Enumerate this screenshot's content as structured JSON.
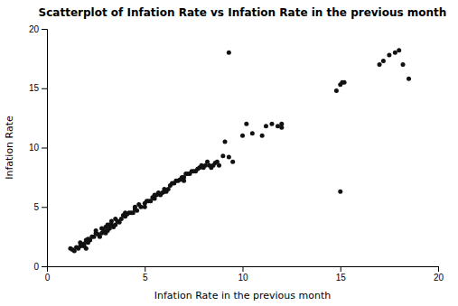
{
  "chart_data": {
    "type": "scatter",
    "title": "Scatterplot of Infation Rate vs Infation Rate in the previous month",
    "xlabel": "Infation Rate in the previous month",
    "ylabel": "Infation Rate",
    "color": "#111111",
    "grid": false,
    "xlim": [
      0,
      20
    ],
    "ylim": [
      0,
      20
    ],
    "xticks": [
      0,
      5,
      10,
      15,
      20
    ],
    "yticks": [
      0,
      5,
      10,
      15,
      20
    ],
    "x": [
      1.2,
      1.3,
      1.4,
      1.5,
      1.6,
      1.7,
      1.7,
      1.8,
      1.9,
      1.9,
      2.0,
      2.0,
      2.1,
      2.1,
      2.2,
      2.3,
      2.4,
      2.5,
      2.5,
      2.6,
      2.7,
      2.8,
      2.8,
      2.9,
      3.0,
      3.0,
      3.1,
      3.1,
      3.2,
      3.2,
      3.3,
      3.3,
      3.4,
      3.5,
      3.5,
      3.6,
      3.7,
      3.8,
      3.9,
      4.0,
      4.0,
      4.1,
      4.2,
      4.3,
      4.4,
      4.5,
      4.5,
      4.6,
      4.7,
      4.8,
      5.0,
      5.0,
      5.1,
      5.2,
      5.3,
      5.4,
      5.5,
      5.5,
      5.6,
      5.7,
      5.8,
      5.9,
      6.0,
      6.0,
      6.1,
      6.2,
      6.3,
      6.4,
      6.5,
      6.6,
      6.7,
      6.8,
      6.9,
      7.0,
      7.0,
      7.1,
      7.2,
      7.3,
      7.4,
      7.5,
      7.6,
      7.7,
      7.8,
      7.9,
      8.0,
      8.1,
      8.2,
      8.3,
      8.4,
      8.5,
      8.6,
      8.7,
      8.8,
      9.0,
      9.1,
      9.3,
      9.5,
      10.0,
      10.2,
      10.5,
      11.0,
      11.2,
      11.5,
      11.8,
      12.0,
      12.0,
      14.8,
      15.0,
      15.1,
      15.2,
      17.0,
      17.2,
      17.5,
      17.8,
      18.0,
      18.2,
      18.5,
      9.3,
      15.0
    ],
    "y": [
      1.5,
      1.4,
      1.3,
      1.6,
      1.5,
      1.7,
      2.0,
      1.8,
      1.9,
      1.7,
      1.5,
      2.2,
      2.0,
      2.3,
      2.2,
      2.5,
      2.5,
      2.8,
      3.0,
      2.7,
      2.5,
      2.8,
      3.2,
      3.0,
      2.8,
      3.3,
      3.0,
      3.5,
      3.2,
      3.5,
      3.5,
      3.8,
      3.3,
      3.5,
      4.0,
      3.8,
      3.7,
      4.0,
      4.3,
      4.2,
      4.5,
      4.4,
      4.5,
      4.5,
      4.5,
      4.8,
      5.0,
      4.7,
      5.2,
      5.0,
      5.0,
      5.3,
      5.5,
      5.5,
      5.5,
      5.8,
      5.7,
      6.0,
      6.0,
      6.2,
      6.0,
      6.2,
      6.3,
      6.5,
      6.3,
      6.5,
      6.8,
      7.0,
      7.0,
      7.2,
      7.2,
      7.3,
      7.5,
      7.2,
      7.5,
      7.8,
      7.8,
      7.8,
      8.0,
      8.0,
      8.0,
      8.2,
      8.3,
      8.5,
      8.3,
      8.5,
      8.8,
      8.5,
      8.3,
      8.5,
      8.7,
      8.8,
      8.5,
      9.3,
      10.5,
      9.2,
      8.8,
      11.0,
      12.0,
      11.2,
      11.0,
      11.8,
      12.0,
      11.8,
      12.0,
      11.7,
      14.8,
      15.3,
      15.5,
      15.5,
      17.0,
      17.3,
      17.8,
      18.0,
      18.2,
      17.0,
      15.8,
      18.0,
      6.3
    ]
  }
}
